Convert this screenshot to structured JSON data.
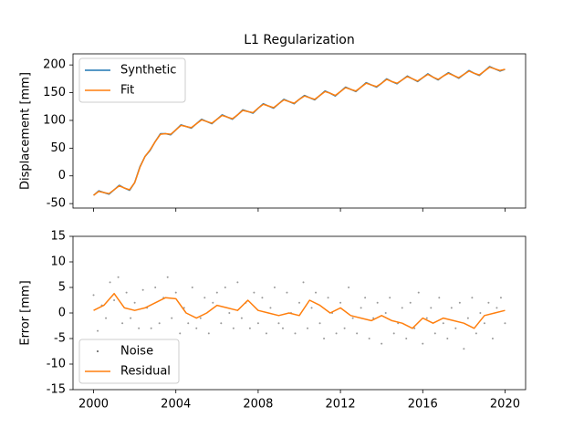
{
  "chart_data": [
    {
      "type": "line",
      "title": "L1 Regularization",
      "ylabel": "Displacement [mm]",
      "legend": "upper left",
      "xlim": [
        1999,
        2021
      ],
      "xticks": [
        2000,
        2004,
        2008,
        2012,
        2016,
        2020
      ],
      "ylim": [
        -58,
        220
      ],
      "yticks": [
        -50,
        0,
        50,
        100,
        150,
        200
      ],
      "series": [
        {
          "name": "Synthetic",
          "color": "#1f77b4",
          "x": [
            2000,
            2000.25,
            2000.5,
            2000.75,
            2001,
            2001.25,
            2001.5,
            2001.75,
            2002,
            2002.25,
            2002.5,
            2002.75,
            2003,
            2003.25,
            2003.5,
            2003.75,
            2004,
            2004.25,
            2004.5,
            2004.75,
            2005,
            2005.25,
            2005.5,
            2005.75,
            2006,
            2006.25,
            2006.5,
            2006.75,
            2007,
            2007.25,
            2007.5,
            2007.75,
            2008,
            2008.25,
            2008.5,
            2008.75,
            2009,
            2009.25,
            2009.5,
            2009.75,
            2010,
            2010.25,
            2010.5,
            2010.75,
            2011,
            2011.25,
            2011.5,
            2011.75,
            2012,
            2012.25,
            2012.5,
            2012.75,
            2013,
            2013.25,
            2013.5,
            2013.75,
            2014,
            2014.25,
            2014.5,
            2014.75,
            2015,
            2015.25,
            2015.5,
            2015.75,
            2016,
            2016.25,
            2016.5,
            2016.75,
            2017,
            2017.25,
            2017.5,
            2017.75,
            2018,
            2018.25,
            2018.5,
            2018.75,
            2019,
            2019.25,
            2019.5,
            2019.75,
            2020
          ],
          "values": [
            -35,
            -27,
            -30,
            -33,
            -25,
            -17,
            -22,
            -26,
            -12,
            16,
            35,
            46,
            62,
            76,
            76,
            74,
            83,
            92,
            89,
            86,
            94,
            102,
            98,
            94,
            102,
            110,
            106,
            102,
            110,
            119,
            116,
            113,
            122,
            130,
            126,
            122,
            130,
            138,
            134,
            130,
            138,
            145,
            141,
            137,
            145,
            153,
            149,
            144,
            152,
            160,
            156,
            152,
            160,
            168,
            164,
            160,
            167,
            175,
            170,
            166,
            173,
            180,
            175,
            170,
            177,
            184,
            178,
            173,
            180,
            186,
            181,
            176,
            183,
            190,
            185,
            181,
            189,
            197,
            193,
            189,
            192
          ]
        },
        {
          "name": "Fit",
          "color": "#ff7f0e",
          "x": [
            2000,
            2000.25,
            2000.5,
            2000.75,
            2001,
            2001.25,
            2001.5,
            2001.75,
            2002,
            2002.25,
            2002.5,
            2002.75,
            2003,
            2003.25,
            2003.5,
            2003.75,
            2004,
            2004.25,
            2004.5,
            2004.75,
            2005,
            2005.25,
            2005.5,
            2005.75,
            2006,
            2006.25,
            2006.5,
            2006.75,
            2007,
            2007.25,
            2007.5,
            2007.75,
            2008,
            2008.25,
            2008.5,
            2008.75,
            2009,
            2009.25,
            2009.5,
            2009.75,
            2010,
            2010.25,
            2010.5,
            2010.75,
            2011,
            2011.25,
            2011.5,
            2011.75,
            2012,
            2012.25,
            2012.5,
            2012.75,
            2013,
            2013.25,
            2013.5,
            2013.75,
            2014,
            2014.25,
            2014.5,
            2014.75,
            2015,
            2015.25,
            2015.5,
            2015.75,
            2016,
            2016.25,
            2016.5,
            2016.75,
            2017,
            2017.25,
            2017.5,
            2017.75,
            2018,
            2018.25,
            2018.5,
            2018.75,
            2019,
            2019.25,
            2019.5,
            2019.75,
            2020
          ],
          "values": [
            -35,
            -28,
            -30,
            -32,
            -25,
            -18,
            -22,
            -25,
            -12,
            15,
            35,
            47,
            62,
            75,
            76,
            75,
            83,
            91,
            89,
            87,
            94,
            101,
            98,
            95,
            102,
            109,
            106,
            103,
            110,
            118,
            116,
            114,
            122,
            129,
            126,
            123,
            130,
            137,
            134,
            131,
            138,
            144,
            141,
            138,
            145,
            152,
            149,
            145,
            152,
            159,
            156,
            153,
            160,
            167,
            164,
            161,
            167,
            174,
            170,
            167,
            173,
            179,
            175,
            171,
            177,
            183,
            178,
            174,
            180,
            185,
            181,
            177,
            183,
            189,
            185,
            182,
            189,
            196,
            193,
            190,
            192
          ]
        }
      ]
    },
    {
      "type": "line",
      "ylabel": "Error [mm]",
      "legend": "lower left",
      "xlim": [
        1999,
        2021
      ],
      "xticks": [
        2000,
        2004,
        2008,
        2012,
        2016,
        2020
      ],
      "ylim": [
        -15,
        15
      ],
      "yticks": [
        -15,
        -10,
        -5,
        0,
        5,
        10,
        15
      ],
      "series": [
        {
          "name": "Noise",
          "color": "#555555",
          "type": "scatter",
          "x": [
            2000,
            2000.2,
            2000.4,
            2000.6,
            2000.8,
            2001,
            2001.2,
            2001.4,
            2001.6,
            2001.8,
            2002,
            2002.2,
            2002.4,
            2002.6,
            2002.8,
            2003,
            2003.2,
            2003.4,
            2003.6,
            2003.8,
            2004,
            2004.2,
            2004.4,
            2004.6,
            2004.8,
            2005,
            2005.2,
            2005.4,
            2005.6,
            2005.8,
            2006,
            2006.2,
            2006.4,
            2006.6,
            2006.8,
            2007,
            2007.2,
            2007.4,
            2007.6,
            2007.8,
            2008,
            2008.2,
            2008.4,
            2008.6,
            2008.8,
            2009,
            2009.2,
            2009.4,
            2009.6,
            2009.8,
            2010,
            2010.2,
            2010.4,
            2010.6,
            2010.8,
            2011,
            2011.2,
            2011.4,
            2011.6,
            2011.8,
            2012,
            2012.2,
            2012.4,
            2012.6,
            2012.8,
            2013,
            2013.2,
            2013.4,
            2013.6,
            2013.8,
            2014,
            2014.2,
            2014.4,
            2014.6,
            2014.8,
            2015,
            2015.2,
            2015.4,
            2015.6,
            2015.8,
            2016,
            2016.2,
            2016.4,
            2016.6,
            2016.8,
            2017,
            2017.2,
            2017.4,
            2017.6,
            2017.8,
            2018,
            2018.2,
            2018.4,
            2018.6,
            2018.8,
            2019,
            2019.2,
            2019.4,
            2019.6,
            2019.8,
            2020
          ],
          "values": [
            3.5,
            -3.5,
            1.5,
            -1,
            6,
            2.5,
            7,
            -2,
            4,
            -1,
            2,
            -3,
            4.5,
            1,
            -3,
            5,
            -2,
            3,
            7,
            -1,
            4,
            -4,
            1,
            -2,
            5,
            -3,
            -1,
            3,
            -4,
            2,
            4,
            -2,
            5,
            0,
            -3,
            6,
            -1,
            2,
            -3,
            4,
            -2,
            3,
            -4,
            1,
            5,
            -2,
            -3,
            4,
            0,
            -4,
            2,
            6,
            -3,
            1,
            4,
            -2,
            -5,
            3,
            0,
            -4,
            2,
            -3,
            5,
            -1,
            -4,
            1,
            3,
            -5,
            -1,
            2,
            -6,
            0,
            3,
            -4,
            -2,
            1,
            -5,
            2,
            -3,
            4,
            -6,
            -1,
            1,
            -4,
            3,
            -2,
            -5,
            1,
            -3,
            2,
            -7,
            -1,
            3,
            -4,
            0,
            -2,
            2,
            -5,
            1,
            3,
            -2
          ]
        },
        {
          "name": "Residual",
          "color": "#ff7f0e",
          "x": [
            2000,
            2000.5,
            2001,
            2001.5,
            2002,
            2002.5,
            2003,
            2003.5,
            2004,
            2004.5,
            2005,
            2005.5,
            2006,
            2006.5,
            2007,
            2007.5,
            2008,
            2008.5,
            2009,
            2009.5,
            2010,
            2010.5,
            2011,
            2011.5,
            2012,
            2012.5,
            2013,
            2013.5,
            2014,
            2014.5,
            2015,
            2015.5,
            2016,
            2016.5,
            2017,
            2017.5,
            2018,
            2018.5,
            2019,
            2019.5,
            2020
          ],
          "values": [
            0.5,
            1.5,
            3.8,
            1,
            0.5,
            1,
            2,
            3,
            2.8,
            0,
            -1,
            0,
            1.5,
            1,
            0.5,
            2.5,
            0.5,
            0,
            -0.5,
            0,
            -0.5,
            2.5,
            1.5,
            0,
            1,
            -0.5,
            -1,
            -1.5,
            -0.5,
            -1.5,
            -2,
            -3,
            -1,
            -2,
            -1,
            -1.5,
            -2,
            -3,
            -0.5,
            0,
            0.5
          ]
        }
      ]
    }
  ]
}
